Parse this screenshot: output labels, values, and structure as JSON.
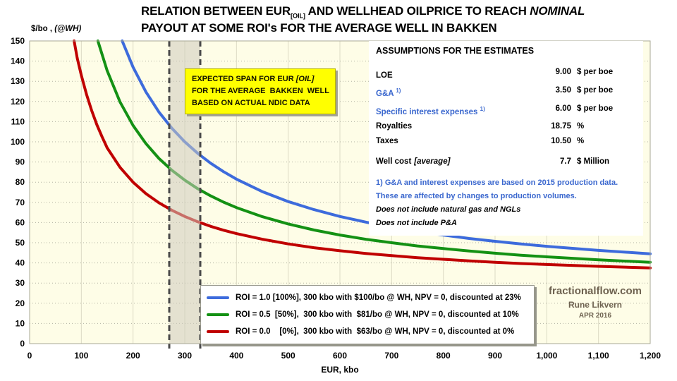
{
  "title": {
    "line1_pre": "RELATION BETWEEN EUR",
    "line1_sub": "[OIL]",
    "line1_mid": " AND WELLHEAD OILPRICE TO REACH ",
    "line1_em": "NOMINAL",
    "line2": "PAYOUT AT SOME ROI's FOR THE AVERAGE WELL IN BAKKEN"
  },
  "axes": {
    "y_title_pre": "$/bo ,",
    "y_title_em": " (@WH)",
    "x_title": "EUR, kbo"
  },
  "annotation": {
    "bg": "#ffff00",
    "line1_pre": "EXPECTED SPAN FOR EUR ",
    "line1_em": "[OIL]",
    "line2": "FOR THE AVERAGE  BAKKEN  WELL",
    "line3": "BASED ON ACTUAL NDIC DATA"
  },
  "assumptions": {
    "title": "ASSUMPTIONS FOR THE ESTIMATES",
    "rows": [
      {
        "label": "LOE",
        "sup": "",
        "value": "9.00",
        "unit": "$ per boe",
        "color": "#000000"
      },
      {
        "label": "G&A",
        "sup": "1)",
        "value": "3.50",
        "unit": "$ per boe",
        "color": "#3a67ce"
      },
      {
        "label": "Specific interest expenses",
        "sup": "1)",
        "value": "6.00",
        "unit": "$ per boe",
        "color": "#3a67ce"
      },
      {
        "label": "Royalties",
        "sup": "",
        "value": "18.75",
        "unit": "%",
        "color": "#000000"
      },
      {
        "label": "Taxes",
        "sup": "",
        "value": "10.50",
        "unit": "%",
        "color": "#000000"
      }
    ],
    "well_cost": {
      "label": "Well cost",
      "label_note": "[average]",
      "value": "7.7",
      "unit": "$ Million",
      "color": "#000000"
    },
    "footnotes": [
      {
        "text": "1) G&A and interest expenses are based on 2015 production data.",
        "color": "#3a67ce",
        "italic": false
      },
      {
        "text": "These are affected by changes to production volumes.",
        "color": "#3a67ce",
        "italic": false
      },
      {
        "text": "Does not include natural gas and NGLs",
        "color": "#000000",
        "italic": true
      },
      {
        "text": "Does not include P&A",
        "color": "#000000",
        "italic": true
      }
    ]
  },
  "legend": {
    "items": [
      {
        "label": "ROI = 1.0 [100%], 300 kbo with $100/bo @ WH, NPV = 0, discounted at 23%",
        "color": "#3d6bdc"
      },
      {
        "label": "ROI = 0.5  [50%],  300 kbo with  $81/bo @ WH, NPV = 0, discounted at 10%",
        "color": "#149114"
      },
      {
        "label": "ROI = 0.0    [0%],  300 kbo with  $63/bo @ WH, NPV = 0, discounted at 0%",
        "color": "#c00000"
      }
    ]
  },
  "attribution": {
    "site": "fractionalflow.com",
    "author": "Rune Likvern",
    "date": "APR 2016",
    "color": "#6e6250"
  },
  "chart_data": {
    "type": "line",
    "title": "RELATION BETWEEN EUR[OIL] AND WELLHEAD OILPRICE TO REACH NOMINAL PAYOUT AT SOME ROI's FOR THE AVERAGE WELL IN BAKKEN",
    "xlabel": "EUR, kbo",
    "ylabel": "$/bo , (@WH)",
    "xlim": [
      0,
      1200
    ],
    "ylim": [
      0,
      150
    ],
    "x_ticks": [
      0,
      100,
      200,
      300,
      400,
      500,
      600,
      700,
      800,
      900,
      1000,
      1100,
      1200
    ],
    "x_tick_labels": [
      "0",
      "100",
      "200",
      "300",
      "400",
      "500",
      "600",
      "700",
      "800",
      "900",
      "1,000",
      "1,100",
      "1,200"
    ],
    "y_ticks": [
      0,
      10,
      20,
      30,
      40,
      50,
      60,
      70,
      80,
      90,
      100,
      110,
      120,
      130,
      140,
      150
    ],
    "y_tick_labels": [
      "0",
      "10",
      "20",
      "30",
      "40",
      "50",
      "60",
      "70",
      "80",
      "90",
      "100",
      "110",
      "120",
      "130",
      "140",
      "150"
    ],
    "plot_bg": "#fefde7",
    "grid": {
      "h_color": "#b3b3a3",
      "v_color": "#dcdbc4",
      "border_color": "#a8a896"
    },
    "band": {
      "x0": 270,
      "x1": 330,
      "fill": "rgba(205,203,190,0.55)",
      "line_color": "#4a4a4a",
      "label": "EXPECTED SPAN FOR EUR [OIL] FOR THE AVERAGE BAKKEN WELL BASED ON ACTUAL NDIC DATA"
    },
    "series": [
      {
        "name": "ROI = 1.0 [100%], 300 kbo with $100/bo @ WH, NPV = 0, discounted at 23%",
        "color": "#3d6bdc",
        "x": [
          179,
          200,
          225,
          250,
          275,
          300,
          325,
          350,
          375,
          400,
          450,
          500,
          550,
          600,
          650,
          700,
          750,
          800,
          850,
          900,
          950,
          1000,
          1100,
          1200
        ],
        "y": [
          150,
          137.0,
          124.7,
          114.8,
          106.7,
          100.0,
          94.3,
          89.4,
          85.2,
          81.5,
          75.3,
          70.4,
          66.4,
          63.0,
          60.2,
          57.7,
          55.6,
          53.8,
          52.1,
          50.7,
          49.4,
          48.2,
          46.2,
          44.5
        ]
      },
      {
        "name": "ROI = 0.5 [50%], 300 kbo with $81/bo @ WH, NPV = 0, discounted at 10%",
        "color": "#149114",
        "x": [
          132,
          150,
          175,
          200,
          225,
          250,
          275,
          300,
          325,
          350,
          375,
          400,
          450,
          500,
          550,
          600,
          650,
          700,
          750,
          800,
          850,
          900,
          950,
          1000,
          1100,
          1200
        ],
        "y": [
          150,
          135.2,
          119.7,
          108.1,
          99.1,
          91.8,
          85.9,
          81.0,
          76.8,
          73.2,
          70.1,
          67.4,
          62.9,
          59.3,
          56.3,
          53.8,
          51.7,
          50.0,
          48.4,
          47.1,
          45.9,
          44.8,
          43.8,
          43.0,
          41.5,
          40.3
        ]
      },
      {
        "name": "ROI = 0.0 [0%], 300 kbo with $63/bo @ WH, NPV = 0, discounted at 0%",
        "color": "#c00000",
        "x": [
          86,
          92,
          100,
          110,
          120,
          130,
          140,
          150,
          175,
          200,
          225,
          250,
          275,
          300,
          325,
          350,
          375,
          400,
          450,
          500,
          550,
          600,
          650,
          700,
          750,
          800,
          850,
          900,
          950,
          1000,
          1100,
          1200
        ],
        "y": [
          150,
          141.5,
          133.0,
          123.5,
          115.5,
          108.5,
          102.5,
          97.0,
          87.3,
          80.0,
          74.3,
          69.8,
          66.1,
          63.0,
          60.4,
          58.1,
          56.2,
          54.5,
          51.7,
          49.4,
          47.5,
          46.0,
          44.7,
          43.6,
          42.6,
          41.8,
          41.0,
          40.3,
          39.7,
          39.2,
          38.3,
          37.5
        ]
      }
    ]
  }
}
